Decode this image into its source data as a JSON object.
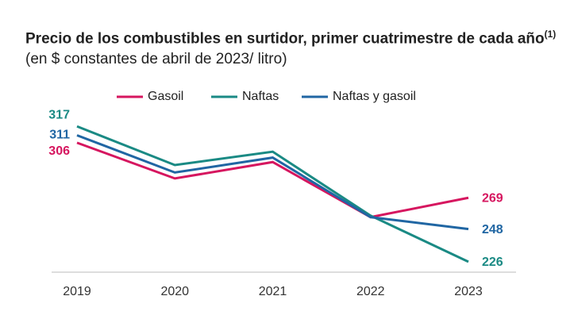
{
  "chart_data": {
    "type": "line",
    "title": "Precio de los combustibles en surtidor, primer cuatrimestre de cada año",
    "title_note": "(1)",
    "subtitle": "(en $ constantes de abril de 2023/ litro)",
    "categories": [
      "2019",
      "2020",
      "2021",
      "2022",
      "2023"
    ],
    "series": [
      {
        "name": "Gasoil",
        "color": "#d6165f",
        "values": [
          306,
          282,
          293,
          256,
          269
        ]
      },
      {
        "name": "Naftas",
        "color": "#1a8a84",
        "values": [
          317,
          291,
          300,
          257,
          226
        ]
      },
      {
        "name": "Naftas y gasoil",
        "color": "#2066a3",
        "values": [
          311,
          286,
          296,
          256,
          248
        ]
      }
    ],
    "ylim": [
      219,
      323
    ],
    "grid": false
  }
}
